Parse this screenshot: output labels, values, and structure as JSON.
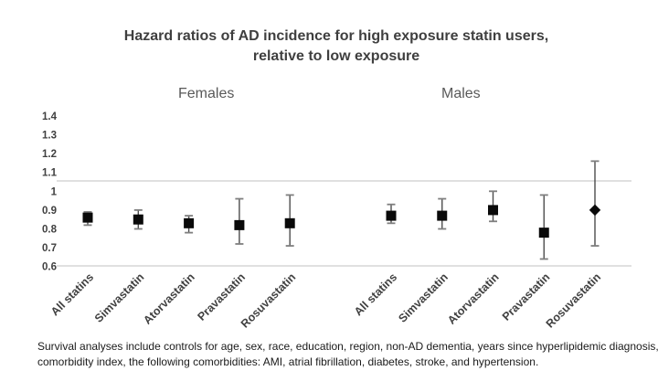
{
  "figure": {
    "title_line1": "Hazard ratios of AD incidence for high exposure statin users,",
    "title_line2": "relative to low exposure",
    "footnote_line1": "Survival analyses include controls for age, sex, race, education, region, non-AD dementia, years since hyperlipidemic diagnosis,",
    "footnote_line2": "comorbidity index, the following comorbidities: AMI, atrial fibrillation, diabetes, stroke, and hypertension."
  },
  "chart_data": {
    "type": "scatter",
    "variant": "forest_plot_error_bars",
    "title": "Hazard ratios of AD incidence for high exposure statin users, relative to low exposure",
    "xlabel": "",
    "ylabel": "",
    "y_axis": {
      "min": 0.6,
      "max": 1.4,
      "tick_labels": [
        "1.4",
        "1.3",
        "1.2",
        "1.1",
        "1",
        "0.9",
        "0.8",
        "0.7",
        "0.6"
      ],
      "grid": false
    },
    "reference_line_y": 1.0,
    "categories": [
      "All statins",
      "Simvastatin",
      "Atorvastatin",
      "Pravastatin",
      "Rosuvastatin"
    ],
    "groups": [
      {
        "label": "Females",
        "points": [
          {
            "category": "All statins",
            "hr": 0.86,
            "ci_low": 0.82,
            "ci_high": 0.89,
            "marker": "square"
          },
          {
            "category": "Simvastatin",
            "hr": 0.85,
            "ci_low": 0.8,
            "ci_high": 0.9,
            "marker": "square"
          },
          {
            "category": "Atorvastatin",
            "hr": 0.83,
            "ci_low": 0.78,
            "ci_high": 0.87,
            "marker": "square"
          },
          {
            "category": "Pravastatin",
            "hr": 0.82,
            "ci_low": 0.72,
            "ci_high": 0.96,
            "marker": "square"
          },
          {
            "category": "Rosuvastatin",
            "hr": 0.83,
            "ci_low": 0.71,
            "ci_high": 0.98,
            "marker": "square"
          }
        ]
      },
      {
        "label": "Males",
        "points": [
          {
            "category": "All statins",
            "hr": 0.87,
            "ci_low": 0.83,
            "ci_high": 0.93,
            "marker": "square"
          },
          {
            "category": "Simvastatin",
            "hr": 0.87,
            "ci_low": 0.8,
            "ci_high": 0.96,
            "marker": "square"
          },
          {
            "category": "Atorvastatin",
            "hr": 0.9,
            "ci_low": 0.84,
            "ci_high": 1.0,
            "marker": "square"
          },
          {
            "category": "Pravastatin",
            "hr": 0.78,
            "ci_low": 0.64,
            "ci_high": 0.98,
            "marker": "square"
          },
          {
            "category": "Rosuvastatin",
            "hr": 0.9,
            "ci_low": 0.71,
            "ci_high": 1.16,
            "marker": "diamond"
          }
        ]
      }
    ]
  },
  "colors": {
    "background": "#ffffff",
    "title_text": "#3f3f3f",
    "group_label_text": "#595959",
    "tick_label_text": "#404040",
    "marker": "#0a0a0a",
    "whisker": "#4d4d4d",
    "whisker_cap": "#7f7f7f",
    "reference_line": "#d6d6d6",
    "axis_line": "#d6d6d6",
    "footnote_text": "#1a1a1a"
  }
}
